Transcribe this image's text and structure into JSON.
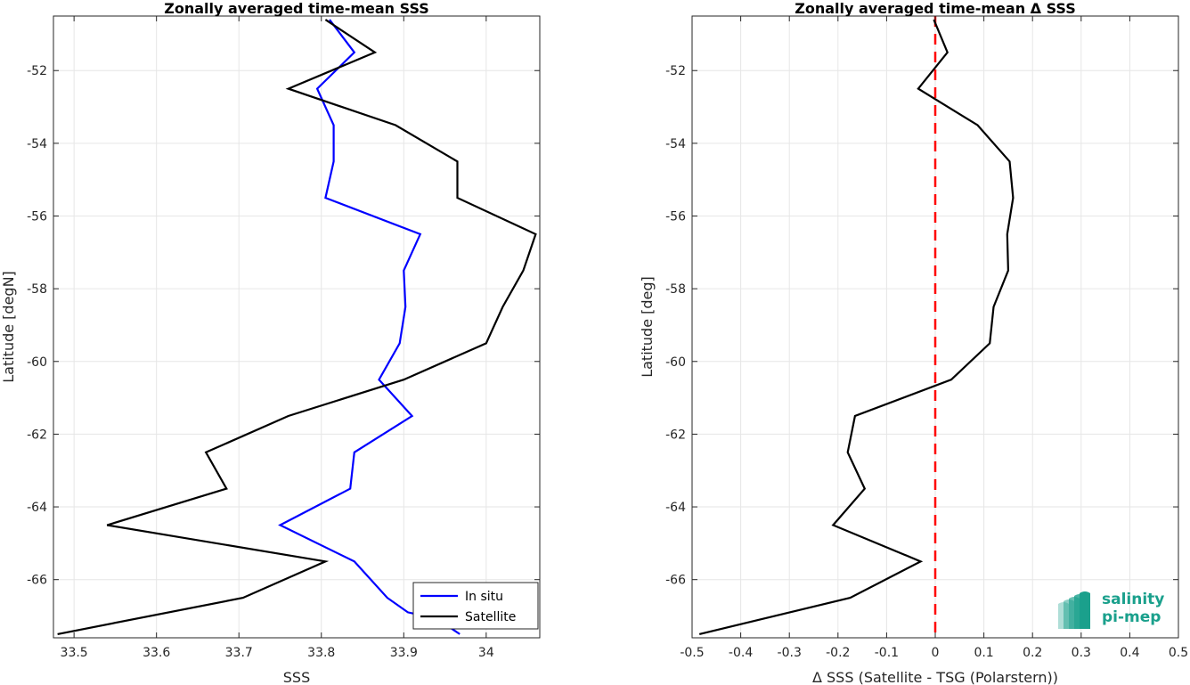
{
  "chart_data": [
    {
      "type": "line",
      "title": "Zonally averaged time-mean SSS",
      "xlabel": "SSS",
      "ylabel": "Latitude [degN]",
      "xlim": [
        33.475,
        34.065
      ],
      "ylim": [
        -67.6,
        -50.5
      ],
      "xticks": [
        33.5,
        33.6,
        33.7,
        33.8,
        33.9,
        34
      ],
      "xtick_labels": [
        "33.5",
        "33.6",
        "33.7",
        "33.8",
        "33.9",
        "34"
      ],
      "yticks": [
        -52,
        -54,
        -56,
        -58,
        -60,
        -62,
        -64,
        -66
      ],
      "ytick_labels": [
        "-52",
        "-54",
        "-56",
        "-58",
        "-60",
        "-62",
        "-64",
        "-66"
      ],
      "grid": true,
      "legend": "bottom-right",
      "series": [
        {
          "name": "In situ",
          "color": "#0000ff",
          "x": [
            33.81,
            33.84,
            33.795,
            33.815,
            33.815,
            33.805,
            33.92,
            33.9,
            33.902,
            33.895,
            33.87,
            33.91,
            33.84,
            33.835,
            33.75,
            33.84,
            33.88,
            33.905,
            33.925,
            33.94,
            33.955,
            33.968
          ],
          "y": [
            -50.6,
            -51.5,
            -52.5,
            -53.5,
            -54.5,
            -55.5,
            -56.5,
            -57.5,
            -58.5,
            -59.5,
            -60.5,
            -61.5,
            -62.5,
            -63.5,
            -64.5,
            -65.5,
            -66.5,
            -66.9,
            -67.0,
            -67.1,
            -67.3,
            -67.5
          ]
        },
        {
          "name": "Satellite",
          "color": "#000000",
          "x": [
            33.805,
            33.865,
            33.76,
            33.89,
            33.965,
            33.965,
            34.06,
            34.045,
            34.02,
            34.0,
            33.9,
            33.76,
            33.66,
            33.685,
            33.54,
            33.805,
            33.705,
            33.48
          ],
          "y": [
            -50.6,
            -51.5,
            -52.5,
            -53.5,
            -54.5,
            -55.5,
            -56.5,
            -57.5,
            -58.5,
            -59.5,
            -60.5,
            -61.5,
            -62.5,
            -63.5,
            -64.5,
            -65.5,
            -66.5,
            -67.5
          ]
        }
      ]
    },
    {
      "type": "line",
      "title": "Zonally averaged time-mean Δ SSS",
      "xlabel": "Δ SSS (Satellite - TSG (Polarstern))",
      "ylabel": "Latitude [deg]",
      "xlim": [
        -0.5,
        0.5
      ],
      "ylim": [
        -67.6,
        -50.5
      ],
      "xticks": [
        -0.5,
        -0.4,
        -0.3,
        -0.2,
        -0.1,
        0,
        0.1,
        0.2,
        0.3,
        0.4,
        0.5
      ],
      "xtick_labels": [
        "-0.5",
        "-0.4",
        "-0.3",
        "-0.2",
        "-0.1",
        "0",
        "0.1",
        "0.2",
        "0.3",
        "0.4",
        "0.5"
      ],
      "yticks": [
        -52,
        -54,
        -56,
        -58,
        -60,
        -62,
        -64,
        -66
      ],
      "ytick_labels": [
        "-52",
        "-54",
        "-56",
        "-58",
        "-60",
        "-62",
        "-64",
        "-66"
      ],
      "grid": true,
      "reference_line": {
        "x": 0,
        "color": "#ff0000",
        "style": "dashed"
      },
      "series": [
        {
          "color": "#000000",
          "x": [
            -0.003,
            0.025,
            -0.035,
            0.087,
            0.153,
            0.16,
            0.148,
            0.15,
            0.12,
            0.112,
            0.033,
            -0.165,
            -0.18,
            -0.145,
            -0.21,
            -0.03,
            -0.175,
            -0.485
          ],
          "y": [
            -50.6,
            -51.5,
            -52.5,
            -53.5,
            -54.5,
            -55.5,
            -56.5,
            -57.5,
            -58.5,
            -59.5,
            -60.5,
            -61.5,
            -62.5,
            -63.5,
            -64.5,
            -65.5,
            -66.5,
            -67.5
          ]
        }
      ]
    }
  ],
  "logo": {
    "line1": "salinity",
    "line2": "pi-mep",
    "color": "#1aa08c"
  }
}
